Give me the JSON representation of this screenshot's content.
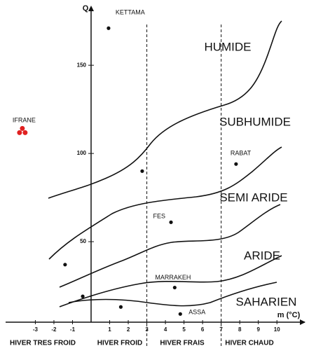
{
  "chart_data": {
    "type": "scatter",
    "y_label": "Q",
    "x_label": "m (°C)",
    "xlim": [
      -4.6,
      11.5
    ],
    "ylim": [
      0,
      185
    ],
    "xticks": [
      -3,
      -2,
      -1,
      1,
      2,
      3,
      4,
      5,
      6,
      7,
      8,
      9,
      10
    ],
    "yticks": [
      50,
      100,
      150
    ],
    "reference_lines": [
      3,
      7
    ],
    "series": [
      {
        "color": "#111111",
        "x": [
          0.94,
          2.75,
          7.8,
          4.3,
          -1.4,
          4.5,
          -0.45,
          1.6,
          4.8
        ],
        "values": [
          171,
          90,
          94,
          61,
          37,
          24,
          19,
          13,
          9
        ],
        "labels": [
          "KETTAMA",
          null,
          "RABAT",
          "FES",
          null,
          "MARRAKEH",
          null,
          null,
          "ASSA"
        ]
      },
      {
        "color": "#e02020",
        "x": [
          -3.7
        ],
        "values": [
          113
        ],
        "labels": [
          "IFRANE"
        ]
      }
    ],
    "zones": [
      "HUMIDE",
      "SUBHUMIDE",
      "SEMI ARIDE",
      "ARIDE",
      "SAHARIEN"
    ],
    "winters": [
      "HIVER TRES FROID",
      "HIVER FROID",
      "HIVER FRAIS",
      "HIVER CHAUD"
    ]
  }
}
